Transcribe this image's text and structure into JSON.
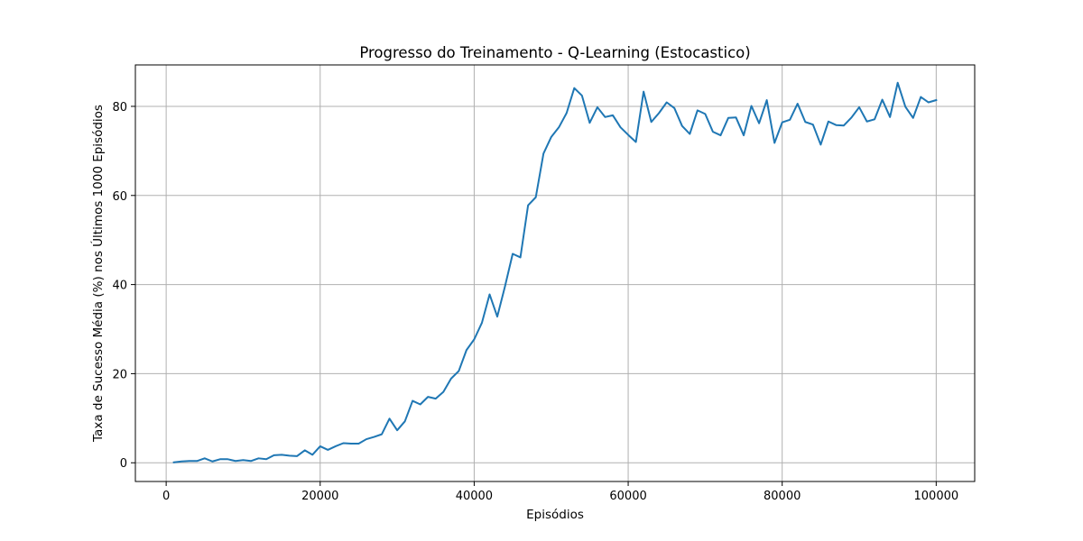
{
  "chart_data": {
    "type": "line",
    "title": "Progresso do Treinamento - Q-Learning (Estocastico)",
    "xlabel": "Episódios",
    "ylabel": "Taxa de Sucesso Média (%) nos Últimos 1000 Episódios",
    "xlim": [
      -4000,
      105000
    ],
    "ylim": [
      -4.2,
      89.3
    ],
    "xticks": [
      0,
      20000,
      40000,
      60000,
      80000,
      100000
    ],
    "yticks": [
      0,
      20,
      40,
      60,
      80
    ],
    "grid": true,
    "color": "#1f77b4",
    "series": [
      {
        "x": [
          1000,
          2000,
          3000,
          4000,
          5000,
          6000,
          7000,
          8000,
          9000,
          10000,
          11000,
          12000,
          13000,
          14000,
          15000,
          16000,
          17000,
          18000,
          19000,
          20000,
          21000,
          22000,
          23000,
          24000,
          25000,
          26000,
          27000,
          28000,
          29000,
          30000,
          31000,
          32000,
          33000,
          34000,
          35000,
          36000,
          37000,
          38000,
          39000,
          40000,
          41000,
          42000,
          43000,
          44000,
          45000,
          46000,
          47000,
          48000,
          49000,
          50000,
          51000,
          52000,
          53000,
          54000,
          55000,
          56000,
          57000,
          58000,
          59000,
          60000,
          61000,
          62000,
          63000,
          64000,
          65000,
          66000,
          67000,
          68000,
          69000,
          70000,
          71000,
          72000,
          73000,
          74000,
          75000,
          76000,
          77000,
          78000,
          79000,
          80000,
          81000,
          82000,
          83000,
          84000,
          85000,
          86000,
          87000,
          88000,
          89000,
          90000,
          91000,
          92000,
          93000,
          94000,
          95000,
          96000,
          97000,
          98000,
          99000,
          100000
        ],
        "values": [
          0.1,
          0.3,
          0.4,
          0.4,
          1.0,
          0.3,
          0.8,
          0.8,
          0.4,
          0.6,
          0.4,
          1.0,
          0.8,
          1.7,
          1.8,
          1.6,
          1.5,
          2.8,
          1.8,
          3.7,
          2.9,
          3.7,
          4.4,
          4.3,
          4.3,
          5.3,
          5.8,
          6.4,
          9.9,
          7.3,
          9.3,
          13.9,
          13.1,
          14.8,
          14.4,
          15.9,
          18.9,
          20.6,
          25.3,
          27.7,
          31.4,
          37.8,
          32.8,
          39.6,
          46.9,
          46.1,
          57.8,
          59.6,
          69.4,
          73.1,
          75.3,
          78.5,
          84.1,
          82.4,
          76.3,
          79.8,
          77.6,
          78.0,
          75.3,
          73.6,
          72.0,
          83.3,
          76.5,
          78.5,
          80.9,
          79.6,
          75.6,
          73.8,
          79.1,
          78.3,
          74.3,
          73.5,
          77.4,
          77.5,
          73.5,
          80.1,
          76.2,
          81.4,
          71.8,
          76.4,
          77.0,
          80.6,
          76.5,
          75.9,
          71.4,
          76.6,
          75.8,
          75.7,
          77.5,
          79.8,
          76.6,
          77.1,
          81.5,
          77.6,
          85.3,
          79.9,
          77.4,
          82.1,
          80.9,
          81.4
        ]
      }
    ]
  }
}
